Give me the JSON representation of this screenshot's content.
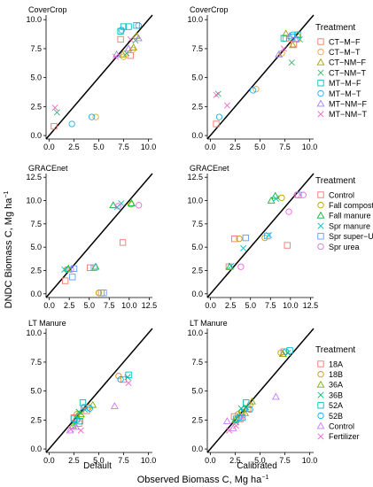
{
  "figure": {
    "xlabel_parts": [
      "Observed Biomass C,  Mg ha",
      "−1"
    ],
    "ylabel_parts": [
      "DNDC Biomass C,  Mg ha",
      "−1"
    ],
    "col_labels": [
      "Default",
      "Calibrated"
    ]
  },
  "groups": [
    {
      "strip": "CoverCrop",
      "legend_title": "Treatment",
      "legend": [
        {
          "label": "CT−M−F",
          "color": "#F8766D",
          "shape": "square"
        },
        {
          "label": "CT−M−T",
          "color": "#F2A22B",
          "shape": "circle"
        },
        {
          "label": "CT−NM−F",
          "color": "#9CA700",
          "shape": "triangle"
        },
        {
          "label": "CT−NM−T",
          "color": "#3CB371",
          "shape": "x"
        },
        {
          "label": "MT−M−F",
          "color": "#00BFC4",
          "shape": "square"
        },
        {
          "label": "MT−M−T",
          "color": "#2CA9DF",
          "shape": "circle"
        },
        {
          "label": "MT−NM−F",
          "color": "#9F83F5",
          "shape": "triangle"
        },
        {
          "label": "MT−NM−T",
          "color": "#F365C9",
          "shape": "x"
        }
      ]
    },
    {
      "strip": "GRACEnet",
      "legend_title": "Treatment",
      "legend": [
        {
          "label": "Control",
          "color": "#F8766D",
          "shape": "square"
        },
        {
          "label": "Fall compost",
          "color": "#B79F00",
          "shape": "circle"
        },
        {
          "label": "Fall manure",
          "color": "#00BA38",
          "shape": "triangle"
        },
        {
          "label": "Spr manure",
          "color": "#00BFC4",
          "shape": "x"
        },
        {
          "label": "Spr super−U",
          "color": "#619CFF",
          "shape": "square"
        },
        {
          "label": "Spr urea",
          "color": "#F564E3",
          "shape": "circle"
        }
      ]
    },
    {
      "strip": "LT Manure",
      "legend_title": "Treatment",
      "legend": [
        {
          "label": "18A",
          "color": "#F8766D",
          "shape": "square"
        },
        {
          "label": "18B",
          "color": "#CD9600",
          "shape": "circle"
        },
        {
          "label": "36A",
          "color": "#7CAE00",
          "shape": "triangle"
        },
        {
          "label": "36B",
          "color": "#00BE67",
          "shape": "x"
        },
        {
          "label": "52A",
          "color": "#00BFC4",
          "shape": "square"
        },
        {
          "label": "52B",
          "color": "#00A9FF",
          "shape": "circle"
        },
        {
          "label": "Control",
          "color": "#C77CFF",
          "shape": "triangle"
        },
        {
          "label": "Fertilizer",
          "color": "#FF61CC",
          "shape": "x"
        }
      ]
    }
  ],
  "chart_data": [
    {
      "type": "scatter",
      "group": "CoverCrop",
      "column": "Default",
      "xlabel": "",
      "ylabel": "",
      "xlim": [
        -0.3,
        10.4
      ],
      "ylim": [
        -0.3,
        10.4
      ],
      "xticks": [
        "0.0",
        "2.5",
        "5.0",
        "7.5",
        "10.0"
      ],
      "yticks": [
        "0.0",
        "2.5",
        "5.0",
        "7.5",
        "10.0"
      ],
      "reference_line": "1:1",
      "series": [
        {
          "name": "CT−M−F",
          "points": [
            [
              0.5,
              0.8
            ],
            [
              7.2,
              8.3
            ],
            [
              8.2,
              6.9
            ]
          ]
        },
        {
          "name": "CT−M−T",
          "points": [
            [
              4.7,
              1.6
            ],
            [
              8.4,
              7.4
            ],
            [
              7.5,
              6.8
            ]
          ]
        },
        {
          "name": "CT−NM−F",
          "points": [
            [
              8.8,
              8.6
            ],
            [
              7.4,
              7.0
            ],
            [
              8.5,
              7.6
            ]
          ]
        },
        {
          "name": "CT−NM−T",
          "points": [
            [
              0.8,
              2.0
            ],
            [
              7.8,
              7.1
            ],
            [
              8.7,
              8.2
            ]
          ]
        },
        {
          "name": "MT−M−F",
          "points": [
            [
              7.2,
              9.0
            ],
            [
              7.5,
              9.4
            ],
            [
              8.0,
              9.4
            ],
            [
              8.8,
              9.5
            ]
          ]
        },
        {
          "name": "MT−M−T",
          "points": [
            [
              4.3,
              1.6
            ],
            [
              2.3,
              1.0
            ],
            [
              7.3,
              9.1
            ],
            [
              9.0,
              9.5
            ]
          ]
        },
        {
          "name": "MT−NM−F",
          "points": [
            [
              8.0,
              7.5
            ],
            [
              6.8,
              7.0
            ],
            [
              9.0,
              8.4
            ]
          ]
        },
        {
          "name": "MT−NM−T",
          "points": [
            [
              0.6,
              2.4
            ],
            [
              8.2,
              8.3
            ],
            [
              6.7,
              6.8
            ]
          ]
        }
      ]
    },
    {
      "type": "scatter",
      "group": "CoverCrop",
      "column": "Calibrated",
      "xlabel": "",
      "ylabel": "",
      "xlim": [
        -0.3,
        10.4
      ],
      "ylim": [
        -0.3,
        10.4
      ],
      "xticks": [
        "0.0",
        "2.5",
        "5.0",
        "7.5",
        "10.0"
      ],
      "yticks": [
        "0.0",
        "2.5",
        "5.0",
        "7.5",
        "10.0"
      ],
      "reference_line": "1:1",
      "series": [
        {
          "name": "CT−M−F",
          "points": [
            [
              0.6,
              1.0
            ],
            [
              7.6,
              8.4
            ],
            [
              8.4,
              7.9
            ]
          ]
        },
        {
          "name": "CT−M−T",
          "points": [
            [
              4.6,
              4.0
            ],
            [
              7.2,
              7.1
            ],
            [
              8.8,
              8.3
            ]
          ]
        },
        {
          "name": "CT−NM−F",
          "points": [
            [
              7.6,
              8.8
            ],
            [
              8.3,
              7.8
            ],
            [
              8.8,
              8.7
            ]
          ]
        },
        {
          "name": "CT−NM−T",
          "points": [
            [
              0.8,
              3.6
            ],
            [
              8.2,
              6.3
            ],
            [
              9.0,
              8.3
            ]
          ]
        },
        {
          "name": "MT−M−F",
          "points": [
            [
              7.4,
              8.4
            ],
            [
              8.2,
              8.5
            ],
            [
              8.8,
              8.7
            ]
          ]
        },
        {
          "name": "MT−M−T",
          "points": [
            [
              0.9,
              1.6
            ],
            [
              4.3,
              3.9
            ],
            [
              8.3,
              8.7
            ]
          ]
        },
        {
          "name": "MT−NM−F",
          "points": [
            [
              8.0,
              8.6
            ],
            [
              6.9,
              7.0
            ],
            [
              8.6,
              8.3
            ]
          ]
        },
        {
          "name": "MT−NM−T",
          "points": [
            [
              0.6,
              3.5
            ],
            [
              1.7,
              2.6
            ],
            [
              7.4,
              7.5
            ]
          ]
        }
      ]
    },
    {
      "type": "scatter",
      "group": "GRACEnet",
      "column": "Default",
      "xlabel": "",
      "ylabel": "",
      "xlim": [
        -0.4,
        12.9
      ],
      "ylim": [
        -0.4,
        12.9
      ],
      "xticks": [
        "0.0",
        "2.5",
        "5.0",
        "7.5",
        "10.0",
        "12.5"
      ],
      "yticks": [
        "0.0",
        "2.5",
        "5.0",
        "7.5",
        "10.0",
        "12.5"
      ],
      "reference_line": "1:1",
      "series": [
        {
          "name": "Control",
          "points": [
            [
              2.0,
              1.4
            ],
            [
              5.1,
              2.8
            ],
            [
              9.2,
              5.5
            ],
            [
              6.5,
              0.1
            ]
          ]
        },
        {
          "name": "Fall compost",
          "points": [
            [
              2.2,
              2.6
            ],
            [
              6.2,
              0.1
            ],
            [
              10.2,
              9.6
            ]
          ]
        },
        {
          "name": "Fall manure",
          "points": [
            [
              2.4,
              2.7
            ],
            [
              5.8,
              2.9
            ],
            [
              8.0,
              9.5
            ],
            [
              10.3,
              9.7
            ]
          ]
        },
        {
          "name": "Spr manure",
          "points": [
            [
              1.9,
              2.6
            ],
            [
              8.5,
              9.3
            ],
            [
              9.0,
              9.7
            ]
          ]
        },
        {
          "name": "Spr super−U",
          "points": [
            [
              2.9,
              1.8
            ],
            [
              3.1,
              2.7
            ],
            [
              5.6,
              2.8
            ],
            [
              6.8,
              0.1
            ]
          ]
        },
        {
          "name": "Spr urea",
          "points": [
            [
              2.7,
              2.6
            ],
            [
              8.6,
              9.4
            ],
            [
              11.2,
              9.5
            ]
          ]
        }
      ]
    },
    {
      "type": "scatter",
      "group": "GRACEnet",
      "column": "Calibrated",
      "xlabel": "",
      "ylabel": "",
      "xlim": [
        -0.4,
        12.9
      ],
      "ylim": [
        -0.4,
        12.9
      ],
      "xticks": [
        "0.0",
        "2.5",
        "5.0",
        "7.5",
        "10.0",
        "12.5"
      ],
      "yticks": [
        "0.0",
        "2.5",
        "5.0",
        "7.5",
        "10.0",
        "12.5"
      ],
      "reference_line": "1:1",
      "series": [
        {
          "name": "Control",
          "points": [
            [
              3.0,
              5.9
            ],
            [
              9.6,
              5.2
            ],
            [
              2.3,
              2.9
            ]
          ]
        },
        {
          "name": "Fall compost",
          "points": [
            [
              3.6,
              5.9
            ],
            [
              6.8,
              6.0
            ],
            [
              8.9,
              10.3
            ]
          ]
        },
        {
          "name": "Fall manure",
          "points": [
            [
              2.4,
              2.9
            ],
            [
              7.6,
              10.0
            ],
            [
              8.1,
              10.5
            ]
          ]
        },
        {
          "name": "Spr manure",
          "points": [
            [
              2.6,
              3.0
            ],
            [
              4.1,
              4.9
            ],
            [
              7.3,
              6.3
            ],
            [
              8.2,
              10.2
            ]
          ]
        },
        {
          "name": "Spr super−U",
          "points": [
            [
              4.4,
              6.0
            ],
            [
              7.1,
              6.2
            ],
            [
              11.0,
              10.6
            ]
          ]
        },
        {
          "name": "Spr urea",
          "points": [
            [
              3.8,
              2.9
            ],
            [
              9.8,
              8.8
            ],
            [
              10.8,
              10.6
            ],
            [
              11.6,
              10.6
            ]
          ]
        }
      ]
    },
    {
      "type": "scatter",
      "group": "LT Manure",
      "column": "Default",
      "xlabel": "",
      "ylabel": "",
      "xlim": [
        -0.3,
        10.4
      ],
      "ylim": [
        -0.3,
        10.4
      ],
      "xticks": [
        "0.0",
        "2.5",
        "5.0",
        "7.5",
        "10.0"
      ],
      "yticks": [
        "0.0",
        "2.5",
        "5.0",
        "7.5",
        "10.0"
      ],
      "reference_line": "1:1",
      "series": [
        {
          "name": "18A",
          "points": [
            [
              2.5,
              2.7
            ],
            [
              3.0,
              2.2
            ],
            [
              3.8,
              3.3
            ],
            [
              7.5,
              6.0
            ]
          ]
        },
        {
          "name": "18B",
          "points": [
            [
              2.8,
              3.0
            ],
            [
              3.2,
              2.8
            ],
            [
              4.0,
              3.6
            ],
            [
              7.0,
              6.3
            ]
          ]
        },
        {
          "name": "36A",
          "points": [
            [
              2.4,
              2.0
            ],
            [
              2.8,
              2.8
            ],
            [
              3.2,
              3.0
            ],
            [
              4.4,
              3.8
            ]
          ]
        },
        {
          "name": "36B",
          "points": [
            [
              2.6,
              2.2
            ],
            [
              3.0,
              3.2
            ],
            [
              3.6,
              3.4
            ],
            [
              7.9,
              6.2
            ]
          ]
        },
        {
          "name": "52A",
          "points": [
            [
              2.5,
              2.6
            ],
            [
              3.1,
              2.4
            ],
            [
              3.4,
              4.0
            ],
            [
              8.0,
              6.4
            ]
          ]
        },
        {
          "name": "52B",
          "points": [
            [
              2.8,
              2.5
            ],
            [
              3.5,
              3.6
            ],
            [
              4.1,
              3.5
            ],
            [
              7.2,
              6.0
            ]
          ]
        },
        {
          "name": "Control",
          "points": [
            [
              2.1,
              1.6
            ],
            [
              2.7,
              1.9
            ],
            [
              6.6,
              3.7
            ]
          ]
        },
        {
          "name": "Fertilizer",
          "points": [
            [
              2.2,
              1.7
            ],
            [
              3.2,
              1.6
            ],
            [
              8.0,
              5.7
            ]
          ]
        }
      ]
    },
    {
      "type": "scatter",
      "group": "LT Manure",
      "column": "Calibrated",
      "xlabel": "",
      "ylabel": "",
      "xlim": [
        -0.3,
        10.4
      ],
      "ylim": [
        -0.3,
        10.4
      ],
      "xticks": [
        "0.0",
        "2.5",
        "5.0",
        "7.5",
        "10.0"
      ],
      "yticks": [
        "0.0",
        "2.5",
        "5.0",
        "7.5",
        "10.0"
      ],
      "reference_line": "1:1",
      "series": [
        {
          "name": "18A",
          "points": [
            [
              2.4,
              2.8
            ],
            [
              3.0,
              2.6
            ],
            [
              3.8,
              3.5
            ],
            [
              7.4,
              8.4
            ]
          ]
        },
        {
          "name": "18B",
          "points": [
            [
              2.8,
              3.0
            ],
            [
              3.2,
              3.2
            ],
            [
              4.0,
              3.8
            ],
            [
              7.1,
              8.3
            ]
          ]
        },
        {
          "name": "36A",
          "points": [
            [
              2.5,
              2.5
            ],
            [
              2.9,
              2.9
            ],
            [
              3.5,
              3.1
            ],
            [
              4.2,
              4.1
            ],
            [
              7.3,
              8.2
            ]
          ]
        },
        {
          "name": "36B",
          "points": [
            [
              2.6,
              2.3
            ],
            [
              3.1,
              3.5
            ],
            [
              3.6,
              3.6
            ],
            [
              7.8,
              8.3
            ]
          ]
        },
        {
          "name": "52A",
          "points": [
            [
              2.6,
              2.6
            ],
            [
              3.2,
              2.7
            ],
            [
              3.6,
              4.0
            ],
            [
              8.0,
              8.5
            ]
          ]
        },
        {
          "name": "52B",
          "points": [
            [
              2.9,
              2.7
            ],
            [
              3.4,
              3.4
            ],
            [
              4.0,
              3.4
            ],
            [
              7.6,
              8.4
            ]
          ]
        },
        {
          "name": "Control",
          "points": [
            [
              1.7,
              2.4
            ],
            [
              2.3,
              1.8
            ],
            [
              6.6,
              4.5
            ]
          ]
        },
        {
          "name": "Fertilizer",
          "points": [
            [
              1.9,
              1.6
            ],
            [
              2.6,
              2.0
            ],
            [
              3.3,
              2.8
            ]
          ]
        }
      ]
    }
  ]
}
